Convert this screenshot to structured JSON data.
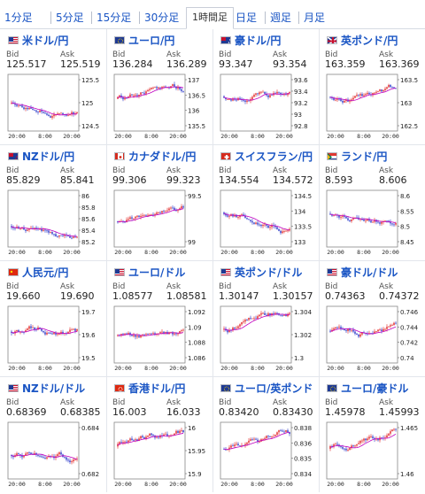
{
  "tabs": [
    {
      "label": "1分足",
      "active": false
    },
    {
      "label": "5分足",
      "active": false
    },
    {
      "label": "15分足",
      "active": false
    },
    {
      "label": "30分足",
      "active": false
    },
    {
      "label": "1時間足",
      "active": true
    },
    {
      "label": "日足",
      "active": false
    },
    {
      "label": "週足",
      "active": false
    },
    {
      "label": "月足",
      "active": false
    }
  ],
  "bid_label": "Bid",
  "ask_label": "Ask",
  "pairs": [
    {
      "name": "米ドル/円",
      "flag": "us",
      "bid": "125.517",
      "ask": "125.519",
      "chart_data": {
        "type": "candlestick",
        "y_ticks": [
          "125.5",
          "125",
          "124.5"
        ],
        "x_ticks": [
          "20:00",
          "8:00",
          "20:00"
        ]
      }
    },
    {
      "name": "ユーロ/円",
      "flag": "eu",
      "bid": "136.284",
      "ask": "136.289",
      "chart_data": {
        "type": "candlestick",
        "y_ticks": [
          "137",
          "136.5",
          "136",
          "135.5"
        ],
        "x_ticks": [
          "20:00",
          "8:00",
          "20:00"
        ]
      }
    },
    {
      "name": "豪ドル/円",
      "flag": "au",
      "bid": "93.347",
      "ask": "93.354",
      "chart_data": {
        "type": "candlestick",
        "y_ticks": [
          "93.6",
          "93.4",
          "93.2",
          "93",
          "92.8"
        ],
        "x_ticks": [
          "20:00",
          "8:00",
          "20:00"
        ]
      }
    },
    {
      "name": "英ポンド/円",
      "flag": "gb",
      "bid": "163.359",
      "ask": "163.369",
      "chart_data": {
        "type": "candlestick",
        "y_ticks": [
          "163.5",
          "163",
          "162.5"
        ],
        "x_ticks": [
          "20:00",
          "8:00",
          "20:00"
        ]
      }
    },
    {
      "name": "NZドル/円",
      "flag": "nz",
      "bid": "85.829",
      "ask": "85.841",
      "chart_data": {
        "type": "candlestick",
        "y_ticks": [
          "86",
          "85.8",
          "85.6",
          "85.4",
          "85.2"
        ],
        "x_ticks": [
          "20:00",
          "8:00",
          "20:00"
        ]
      }
    },
    {
      "name": "カナダドル/円",
      "flag": "ca",
      "bid": "99.306",
      "ask": "99.323",
      "chart_data": {
        "type": "candlestick",
        "y_ticks": [
          "99.5",
          "99"
        ],
        "x_ticks": [
          "20:00",
          "8:00",
          "20:00"
        ]
      }
    },
    {
      "name": "スイスフラン/円",
      "flag": "ch",
      "bid": "134.554",
      "ask": "134.572",
      "chart_data": {
        "type": "candlestick",
        "y_ticks": [
          "134.5",
          "134",
          "133.5",
          "133"
        ],
        "x_ticks": [
          "20:00",
          "8:00",
          "20:00"
        ]
      }
    },
    {
      "name": "ランド/円",
      "flag": "za",
      "bid": "8.593",
      "ask": "8.606",
      "chart_data": {
        "type": "candlestick",
        "y_ticks": [
          "8.6",
          "8.55",
          "8.5",
          "8.45"
        ],
        "x_ticks": [
          "20:00",
          "8:00",
          "20:00"
        ]
      }
    },
    {
      "name": "人民元/円",
      "flag": "cn",
      "bid": "19.660",
      "ask": "19.690",
      "chart_data": {
        "type": "candlestick",
        "y_ticks": [
          "19.7",
          "19.6",
          "19.5"
        ],
        "x_ticks": [
          "20:00",
          "8:00",
          "20:00"
        ]
      }
    },
    {
      "name": "ユーロ/ドル",
      "flag": "us",
      "bid": "1.08577",
      "ask": "1.08581",
      "chart_data": {
        "type": "candlestick",
        "y_ticks": [
          "1.092",
          "1.09",
          "1.088",
          "1.086"
        ],
        "x_ticks": [
          "20:00",
          "8:00",
          "20:00"
        ]
      }
    },
    {
      "name": "英ポンド/ドル",
      "flag": "us",
      "bid": "1.30147",
      "ask": "1.30157",
      "chart_data": {
        "type": "candlestick",
        "y_ticks": [
          "1.304",
          "1.302",
          "1.3"
        ],
        "x_ticks": [
          "20:00",
          "8:00",
          "20:00"
        ]
      }
    },
    {
      "name": "豪ドル/ドル",
      "flag": "us",
      "bid": "0.74363",
      "ask": "0.74372",
      "chart_data": {
        "type": "candlestick",
        "y_ticks": [
          "0.746",
          "0.744",
          "0.742",
          "0.74"
        ],
        "x_ticks": [
          "20:00",
          "8:00",
          "20:00"
        ]
      }
    },
    {
      "name": "NZドル/ドル",
      "flag": "us",
      "bid": "0.68369",
      "ask": "0.68385",
      "chart_data": {
        "type": "candlestick",
        "y_ticks": [
          "0.684",
          "0.682"
        ],
        "x_ticks": [
          "20:00",
          "8:00",
          "20:00"
        ]
      }
    },
    {
      "name": "香港ドル/円",
      "flag": "hk",
      "bid": "16.003",
      "ask": "16.033",
      "chart_data": {
        "type": "candlestick",
        "y_ticks": [
          "16",
          "15.95",
          "15.9"
        ],
        "x_ticks": [
          "20:00",
          "8:00",
          "20:00"
        ]
      }
    },
    {
      "name": "ユーロ/英ポンド",
      "flag": "eu",
      "bid": "0.83420",
      "ask": "0.83430",
      "chart_data": {
        "type": "candlestick",
        "y_ticks": [
          "0.838",
          "0.836",
          "0.835",
          "0.834"
        ],
        "x_ticks": [
          "20:00",
          "8:00",
          "20:00"
        ]
      }
    },
    {
      "name": "ユーロ/豪ドル",
      "flag": "eu",
      "bid": "1.45978",
      "ask": "1.45993",
      "chart_data": {
        "type": "candlestick",
        "y_ticks": [
          "1.465",
          "1.46"
        ],
        "x_ticks": [
          "20:00",
          "8:00",
          "20:00"
        ]
      }
    }
  ],
  "colors": {
    "link": "#1a55c4",
    "candle_up": "#e02020",
    "candle_down": "#2533c8",
    "moving_average": "#c000c0"
  }
}
